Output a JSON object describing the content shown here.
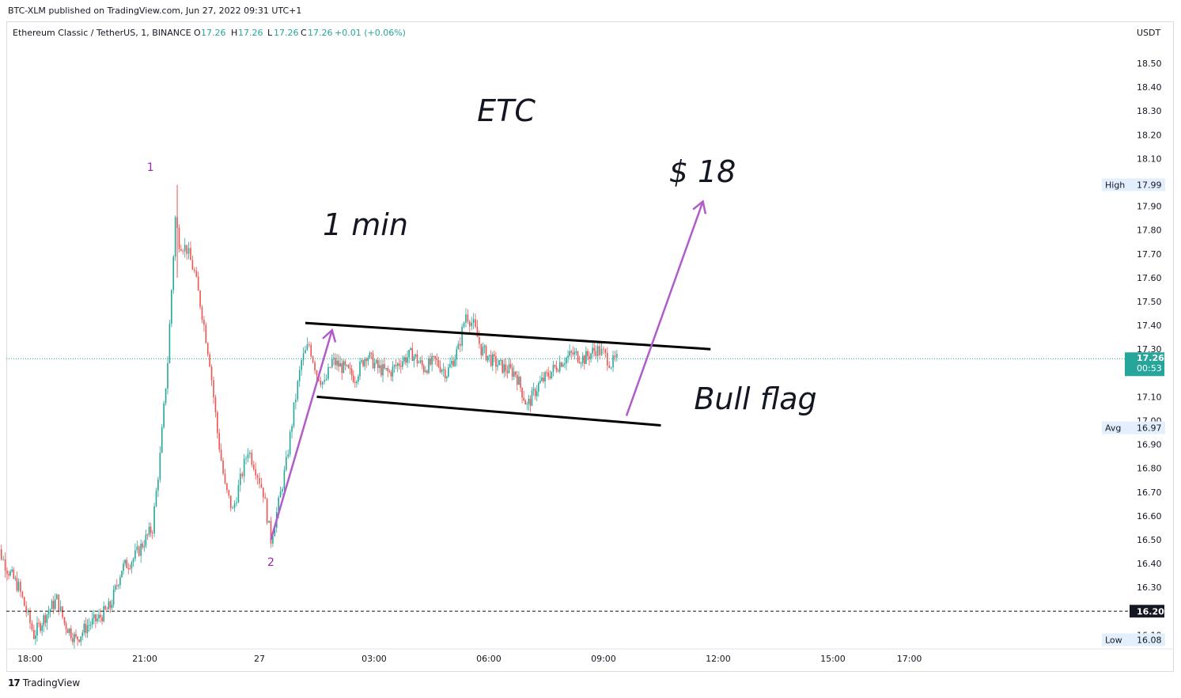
{
  "header": {
    "published": "BTC-XLM published on TradingView.com, Jun 27, 2022 09:31 UTC+1"
  },
  "legend": {
    "symbol": "Ethereum Classic / TetherUS, 1, BINANCE",
    "o_label": "O",
    "o_value": "17.26",
    "h_label": "H",
    "h_value": "17.26",
    "l_label": "L",
    "l_value": "17.26",
    "c_label": "C",
    "c_value": "17.26",
    "change": "+0.01 (+0.06%)"
  },
  "footer": {
    "logo_text": "TradingView"
  },
  "colors": {
    "up": "#26a69a",
    "down": "#ef5350",
    "annotation": "#b05cc9",
    "price_line": "#26a69a",
    "text": "#131722",
    "axis_text": "#131722"
  },
  "chart_data": {
    "type": "candlestick",
    "currency": "USDT",
    "ylim": [
      16.04,
      18.58
    ],
    "y_ticks": [
      "18.50",
      "18.40",
      "18.30",
      "18.20",
      "18.10",
      "17.90",
      "17.80",
      "17.70",
      "17.60",
      "17.50",
      "17.40",
      "17.30",
      "17.10",
      "17.00",
      "16.90",
      "16.80",
      "16.70",
      "16.60",
      "16.50",
      "16.40",
      "16.30",
      "16.10"
    ],
    "x_ticks": [
      {
        "label": "18:00",
        "h": 18.0
      },
      {
        "label": "21:00",
        "h": 21.0
      },
      {
        "label": "27",
        "h": 24.0
      },
      {
        "label": "03:00",
        "h": 27.0
      },
      {
        "label": "06:00",
        "h": 30.0
      },
      {
        "label": "09:00",
        "h": 33.0
      },
      {
        "label": "12:00",
        "h": 36.0
      },
      {
        "label": "15:00",
        "h": 39.0
      },
      {
        "label": "17:00",
        "h": 41.0
      }
    ],
    "price_path": [
      [
        17.0,
        16.4
      ],
      [
        17.2,
        16.45
      ],
      [
        17.4,
        16.38
      ],
      [
        17.7,
        16.3
      ],
      [
        17.9,
        16.2
      ],
      [
        18.1,
        16.1
      ],
      [
        18.4,
        16.18
      ],
      [
        18.7,
        16.25
      ],
      [
        18.9,
        16.15
      ],
      [
        19.2,
        16.08
      ],
      [
        19.5,
        16.14
      ],
      [
        19.8,
        16.17
      ],
      [
        20.1,
        16.22
      ],
      [
        20.4,
        16.38
      ],
      [
        20.7,
        16.42
      ],
      [
        20.9,
        16.47
      ],
      [
        21.2,
        16.55
      ],
      [
        21.4,
        16.85
      ],
      [
        21.6,
        17.25
      ],
      [
        21.7,
        17.55
      ],
      [
        21.8,
        17.85
      ],
      [
        21.9,
        17.75
      ],
      [
        22.1,
        17.72
      ],
      [
        22.3,
        17.62
      ],
      [
        22.5,
        17.45
      ],
      [
        22.7,
        17.25
      ],
      [
        22.9,
        16.95
      ],
      [
        23.1,
        16.72
      ],
      [
        23.3,
        16.62
      ],
      [
        23.5,
        16.75
      ],
      [
        23.7,
        16.88
      ],
      [
        23.9,
        16.8
      ],
      [
        24.1,
        16.7
      ],
      [
        24.3,
        16.5
      ],
      [
        24.5,
        16.65
      ],
      [
        24.7,
        16.82
      ],
      [
        24.9,
        17.05
      ],
      [
        25.1,
        17.25
      ],
      [
        25.3,
        17.32
      ],
      [
        25.5,
        17.2
      ],
      [
        25.7,
        17.15
      ],
      [
        25.9,
        17.25
      ],
      [
        26.2,
        17.22
      ],
      [
        26.5,
        17.18
      ],
      [
        26.8,
        17.28
      ],
      [
        27.1,
        17.22
      ],
      [
        27.4,
        17.2
      ],
      [
        27.7,
        17.25
      ],
      [
        28.0,
        17.28
      ],
      [
        28.3,
        17.22
      ],
      [
        28.6,
        17.25
      ],
      [
        28.9,
        17.2
      ],
      [
        29.2,
        17.3
      ],
      [
        29.4,
        17.45
      ],
      [
        29.6,
        17.4
      ],
      [
        29.8,
        17.3
      ],
      [
        30.1,
        17.25
      ],
      [
        30.4,
        17.22
      ],
      [
        30.7,
        17.2
      ],
      [
        31.0,
        17.06
      ],
      [
        31.3,
        17.15
      ],
      [
        31.6,
        17.2
      ],
      [
        31.9,
        17.25
      ],
      [
        32.2,
        17.28
      ],
      [
        32.5,
        17.26
      ],
      [
        32.8,
        17.3
      ],
      [
        33.0,
        17.28
      ],
      [
        33.2,
        17.24
      ],
      [
        33.4,
        17.26
      ]
    ],
    "last_price": "17.26",
    "countdown": "00:53",
    "high": {
      "label": "High",
      "value": "17.99"
    },
    "avg": {
      "label": "Avg",
      "value": "16.97"
    },
    "low": {
      "label": "Low",
      "value": "16.08"
    },
    "dashed_level": "16.20",
    "annotations": {
      "title": "ETC",
      "timeframe": "1 min",
      "target": "$ 18",
      "pattern": "Bull flag",
      "wave1": "1",
      "wave2": "2"
    },
    "flag_upper": [
      [
        25.2,
        17.41
      ],
      [
        35.8,
        17.3
      ]
    ],
    "flag_lower": [
      [
        25.5,
        17.1
      ],
      [
        34.5,
        16.98
      ]
    ],
    "pole_arrow": [
      [
        24.3,
        16.5
      ],
      [
        25.9,
        17.38
      ]
    ],
    "target_arrow": [
      [
        33.6,
        17.02
      ],
      [
        35.6,
        17.92
      ]
    ]
  }
}
